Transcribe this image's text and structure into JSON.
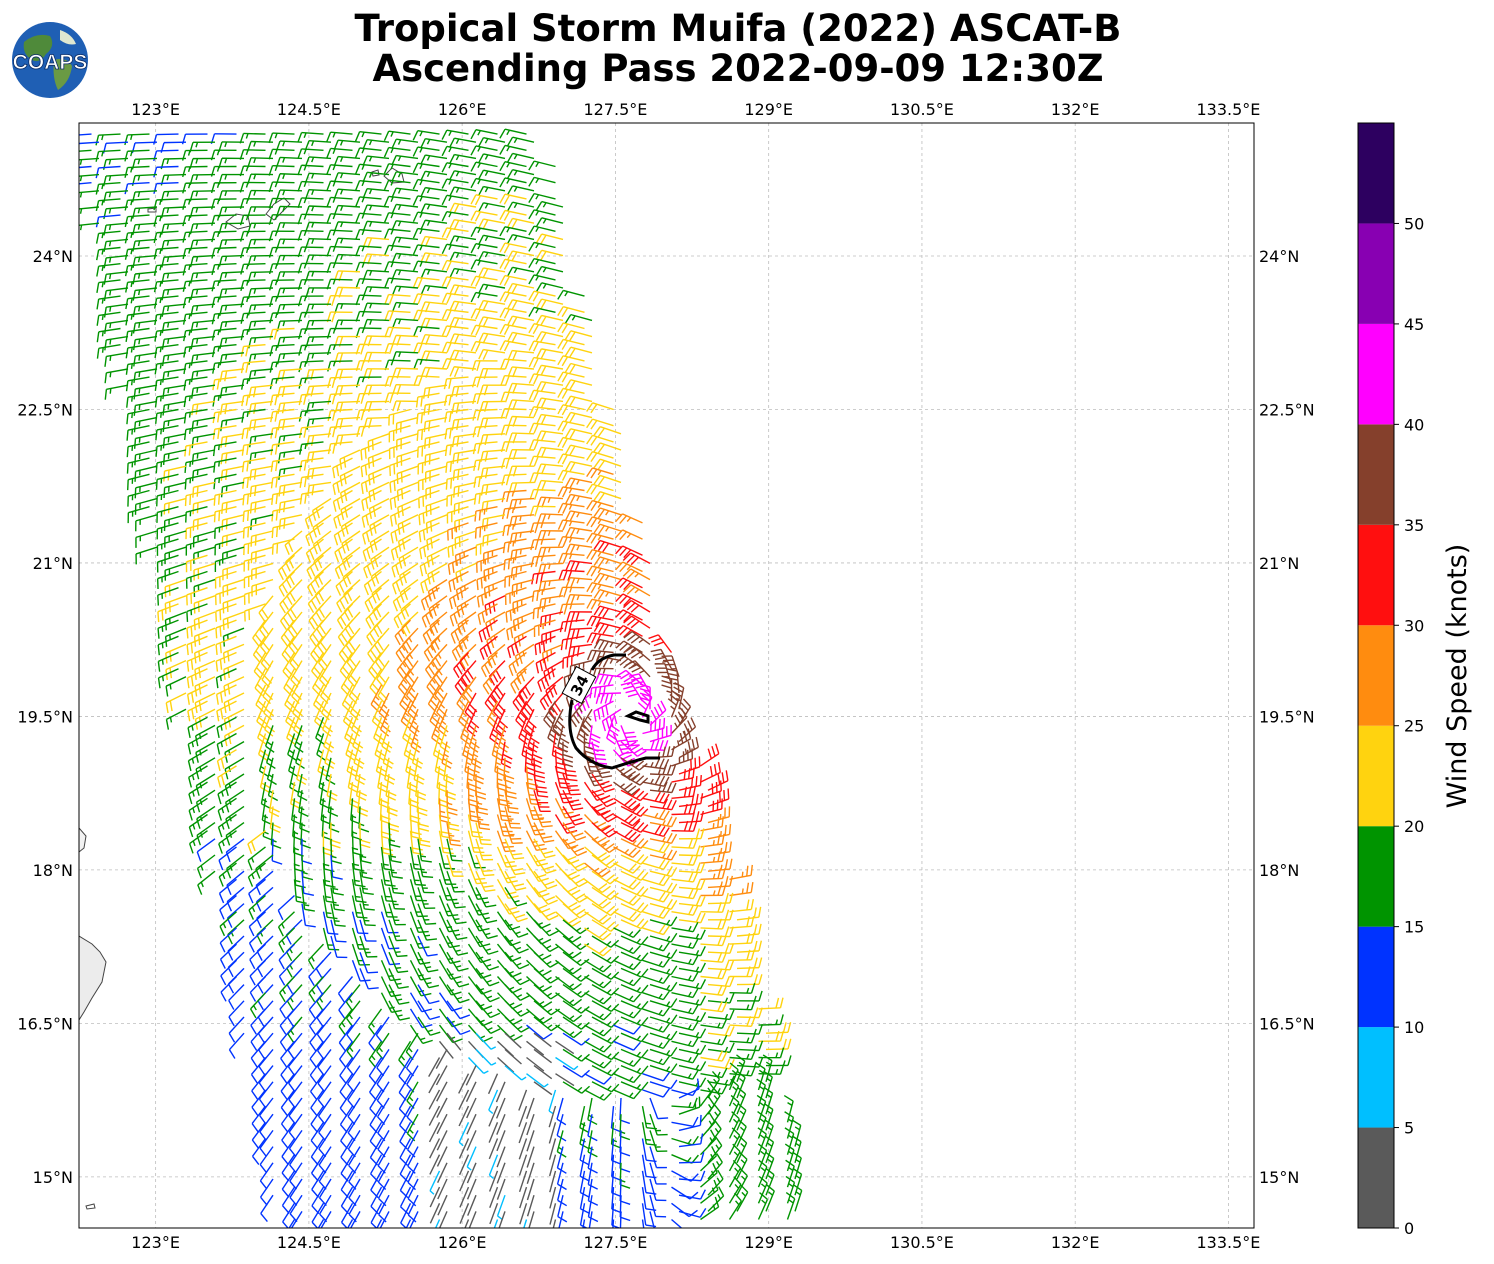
{
  "title": {
    "line1": "Tropical Storm Muifa (2022) ASCAT-B",
    "line2": "Ascending Pass 2022-09-09 12:30Z"
  },
  "logo": {
    "text": "COAPS",
    "icon": "globe-icon"
  },
  "map": {
    "lon_range": [
      122.25,
      133.75
    ],
    "lat_range": [
      14.5,
      25.3
    ],
    "lon_ticks": [
      "123°E",
      "124.5°E",
      "126°E",
      "127.5°E",
      "129°E",
      "130.5°E",
      "132°E",
      "133.5°E"
    ],
    "lat_ticks": [
      "24°N",
      "22.5°N",
      "21°N",
      "19.5°N",
      "18°N",
      "16.5°N",
      "15°N"
    ],
    "contour_label": "34",
    "storm_center": {
      "lon": 127.65,
      "lat": 19.5
    }
  },
  "colorbar": {
    "label": "Wind Speed (knots)",
    "ticks": [
      "0",
      "5",
      "10",
      "15",
      "20",
      "25",
      "30",
      "35",
      "40",
      "45",
      "50"
    ],
    "bins": [
      {
        "min": 0,
        "max": 5,
        "color": "#5a5a5a"
      },
      {
        "min": 5,
        "max": 10,
        "color": "#00bfff"
      },
      {
        "min": 10,
        "max": 15,
        "color": "#0033ff"
      },
      {
        "min": 15,
        "max": 20,
        "color": "#009400"
      },
      {
        "min": 20,
        "max": 25,
        "color": "#ffd30f"
      },
      {
        "min": 25,
        "max": 30,
        "color": "#ff8c0f"
      },
      {
        "min": 30,
        "max": 35,
        "color": "#ff0f0f"
      },
      {
        "min": 35,
        "max": 40,
        "color": "#85402c"
      },
      {
        "min": 40,
        "max": 45,
        "color": "#ff00ff"
      },
      {
        "min": 45,
        "max": 50,
        "color": "#8800b2"
      },
      {
        "min": 50,
        "max": 55,
        "color": "#2d0060"
      }
    ]
  }
}
